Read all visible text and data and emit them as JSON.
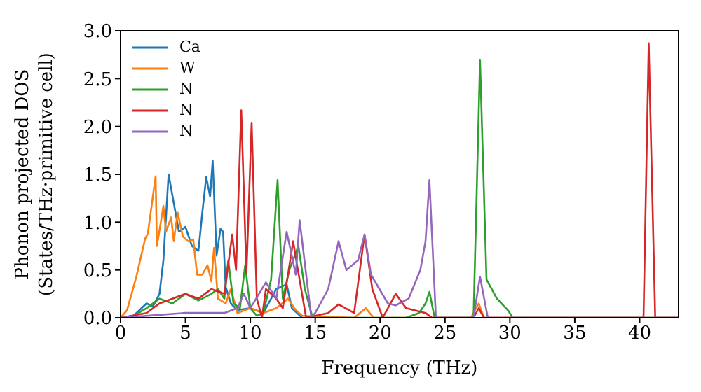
{
  "chart_data": {
    "type": "line",
    "xlabel": "Frequency (THz)",
    "ylabel": "Phonon projected DOS\n(States/THz·primitive cell)",
    "xlim": [
      0,
      43
    ],
    "xticks": [
      0,
      5,
      10,
      15,
      20,
      25,
      30,
      35,
      40
    ],
    "ylim": [
      0,
      3
    ],
    "yticks": [
      {
        "value": 0,
        "label": "0.0"
      },
      {
        "value": 0.5,
        "label": "0.5"
      },
      {
        "value": 1,
        "label": "1.0"
      },
      {
        "value": 1.5,
        "label": "1.5"
      },
      {
        "value": 2,
        "label": "2.0"
      },
      {
        "value": 2.5,
        "label": "2.5"
      },
      {
        "value": 3,
        "label": "3.0"
      }
    ],
    "grid": false,
    "legend": "top left",
    "marker": "none",
    "line_style": "solid",
    "series": [
      {
        "name": "Ca",
        "color": "#1f77b4",
        "x": [
          0,
          1,
          2,
          2.5,
          3,
          3.3,
          3.7,
          4.1,
          4.5,
          5,
          5.5,
          6,
          6.3,
          6.6,
          6.9,
          7.1,
          7.4,
          7.7,
          7.9,
          8.1,
          8.5,
          9,
          10,
          11,
          12,
          12.8,
          13.2,
          14
        ],
        "values": [
          0,
          0.02,
          0.15,
          0.12,
          0.25,
          0.6,
          1.5,
          1.2,
          0.9,
          0.95,
          0.75,
          0.7,
          1.1,
          1.47,
          1.27,
          1.64,
          0.65,
          0.93,
          0.9,
          0.32,
          0.15,
          0.08,
          0.1,
          0.05,
          0.3,
          0.35,
          0.1,
          0
        ]
      },
      {
        "name": "W",
        "color": "#ff7f0e",
        "x": [
          0,
          0.5,
          1.2,
          1.9,
          2.1,
          2.7,
          2.8,
          3.1,
          3.3,
          3.5,
          3.9,
          4.1,
          4.4,
          4.8,
          5.2,
          5.6,
          5.9,
          6.3,
          6.7,
          7,
          7.2,
          7.5,
          8.1,
          8.5,
          9,
          10,
          11,
          12,
          12.9,
          13.5,
          14,
          18,
          18.9,
          19.5,
          27,
          27.6,
          28,
          43
        ],
        "values": [
          0,
          0.08,
          0.42,
          0.83,
          0.88,
          1.48,
          0.75,
          1,
          1.17,
          0.9,
          1.05,
          0.8,
          1.1,
          0.85,
          0.8,
          0.82,
          0.45,
          0.45,
          0.55,
          0.38,
          0.73,
          0.2,
          0.15,
          0.3,
          0.05,
          0.1,
          0.05,
          0.1,
          0.2,
          0.08,
          0.02,
          0,
          0.1,
          0,
          0,
          0.15,
          0,
          0
        ]
      },
      {
        "name": "N",
        "color": "#2ca02c",
        "x": [
          0,
          1,
          2,
          3,
          4,
          5,
          6,
          7,
          7.5,
          8,
          8.3,
          8.7,
          9.2,
          9.6,
          10,
          10.5,
          11,
          11.6,
          12.1,
          12.5,
          13,
          13.7,
          14.2,
          14.8,
          22,
          23,
          23.5,
          23.8,
          24.2,
          27.2,
          27.7,
          28.2,
          29,
          29.9,
          30.2,
          43
        ],
        "values": [
          0,
          0.02,
          0.1,
          0.2,
          0.15,
          0.25,
          0.18,
          0.25,
          0.3,
          0.2,
          0.6,
          0.15,
          0.1,
          0.55,
          0.1,
          0.02,
          0.05,
          0.4,
          1.44,
          0.2,
          0.5,
          0.75,
          0.3,
          0,
          0,
          0.05,
          0.15,
          0.27,
          0,
          0,
          2.69,
          0.4,
          0.2,
          0.07,
          0,
          0
        ]
      },
      {
        "name": "N",
        "color": "#d62728",
        "x": [
          0,
          2,
          3,
          4,
          5,
          6,
          7,
          8,
          8.6,
          8.9,
          9.3,
          9.7,
          10.1,
          10.5,
          10.9,
          11.2,
          12,
          12.5,
          13.3,
          13.6,
          14.3,
          16,
          16.8,
          18,
          18.8,
          19.4,
          20.2,
          21.2,
          22,
          23.5,
          24,
          27.2,
          27.6,
          28,
          40.3,
          40.7,
          41.2,
          43
        ],
        "values": [
          0,
          0.05,
          0.15,
          0.2,
          0.25,
          0.2,
          0.3,
          0.25,
          0.87,
          0.5,
          2.17,
          0.47,
          2.04,
          0.2,
          0,
          0.3,
          0.2,
          0.1,
          0.8,
          0.55,
          0,
          0.05,
          0.14,
          0.05,
          0.87,
          0.3,
          0,
          0.25,
          0.1,
          0.05,
          0,
          0,
          0.1,
          0,
          0,
          2.87,
          0,
          0
        ]
      },
      {
        "name": "N",
        "color": "#9467bd",
        "x": [
          0,
          3,
          5,
          8,
          9,
          9.5,
          10,
          11.2,
          12,
          12.8,
          13.5,
          13.8,
          14.7,
          15,
          16,
          16.8,
          17.4,
          18.3,
          18.8,
          19.3,
          20.6,
          21.2,
          22.2,
          23.1,
          23.5,
          23.8,
          24.3,
          27.2,
          27.7,
          28.3,
          43
        ],
        "values": [
          0,
          0.03,
          0.05,
          0.05,
          0.1,
          0.25,
          0.1,
          0.37,
          0.2,
          0.9,
          0.45,
          1.02,
          0,
          0.05,
          0.3,
          0.8,
          0.5,
          0.6,
          0.87,
          0.45,
          0.15,
          0.13,
          0.2,
          0.5,
          0.8,
          1.44,
          0,
          0,
          0.43,
          0,
          0
        ]
      }
    ]
  }
}
